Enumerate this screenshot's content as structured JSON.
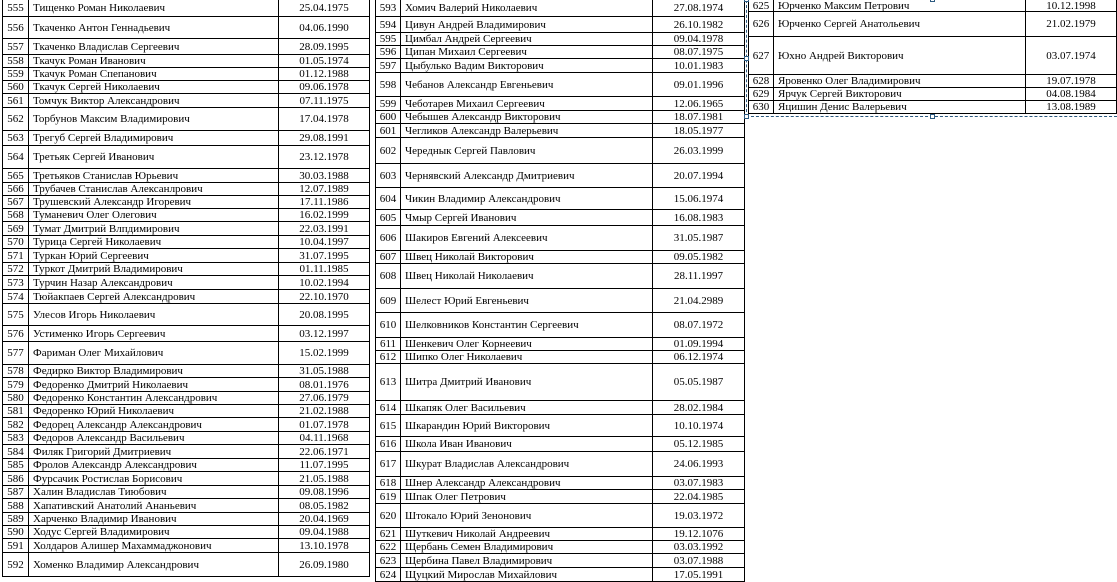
{
  "tables": [
    {
      "rows": [
        [
          "555",
          "Тищенко Роман Николаевич",
          "25.04.1975"
        ],
        [
          "556",
          "Ткаченко Антон Геннадьевич",
          "04.06.1990"
        ],
        [
          "557",
          "Ткаченко Владислав Сергеевич",
          "28.09.1995"
        ],
        [
          "558",
          "Ткачук Роман Иванович",
          "01.05.1974"
        ],
        [
          "559",
          "Ткачук Роман Спепанович",
          "01.12.1988"
        ],
        [
          "560",
          "Ткачук Сергей Николаевич",
          "09.06.1978"
        ],
        [
          "561",
          "Томчук Виктор Александрович",
          "07.11.1975"
        ],
        [
          "562",
          "Торбунов Максим Владимирович",
          "17.04.1978"
        ],
        [
          "563",
          "Трегуб Сергей Владимирович",
          "29.08.1991"
        ],
        [
          "564",
          "Третьяк Сергей Иванович",
          "23.12.1978"
        ],
        [
          "565",
          "Третьяков Станислав Юрьевич",
          "30.03.1988"
        ],
        [
          "566",
          "Трубачев Станислав Алексанлрович",
          "12.07.1989"
        ],
        [
          "567",
          "Трушевский Александр Игоревич",
          "17.11.1986"
        ],
        [
          "568",
          "Туманевич Олег Олегович",
          "16.02.1999"
        ],
        [
          "569",
          "Тумат Дмитрий Влпдимирович",
          "22.03.1991"
        ],
        [
          "570",
          "Турица Сергей Николаевич",
          "10.04.1997"
        ],
        [
          "571",
          "Туркан Юрий Сергеевич",
          "31.07.1995"
        ],
        [
          "572",
          "Туркот Дмитрий Владимирович",
          "01.11.1985"
        ],
        [
          "573",
          "Турчин Назар Александрович",
          "10.02.1994"
        ],
        [
          "574",
          "Тюйакпаев Сергей Александрович",
          "22.10.1970"
        ],
        [
          "575",
          "Улесов Игорь Николаевич",
          "20.08.1995"
        ],
        [
          "576",
          "Устименко Игорь Сергеевич",
          "03.12.1997"
        ],
        [
          "577",
          "Фариман Олег Михайлович",
          "15.02.1999"
        ],
        [
          "578",
          "Федирко Виктор Владимирович",
          "31.05.1988"
        ],
        [
          "579",
          "Федоренко Дмитрий Николаевич",
          "08.01.1976"
        ],
        [
          "580",
          "Федоренко Константин Александрович",
          "27.06.1979"
        ],
        [
          "581",
          "Федоренко Юрий Николаевич",
          "21.02.1988"
        ],
        [
          "582",
          "Федорец  Александр Александрович",
          "01.07.1978"
        ],
        [
          "583",
          "Федоров Александр Васильевич",
          "04.11.1968"
        ],
        [
          "584",
          "Филяк Григорий Дмитриевич",
          "22.06.1971"
        ],
        [
          "585",
          "Фролов Александр Александрович",
          "11.07.1995"
        ],
        [
          "586",
          "Фурсачик  Ростислав Борисович",
          "21.05.1988"
        ],
        [
          "587",
          "Халин Владислав Тиюбович",
          "09.08.1996"
        ],
        [
          "588",
          "Хапативский Анатолий Ананьевич",
          "08.05.1982"
        ],
        [
          "589",
          "Харченко Владимир Иванович",
          "20.04.1969"
        ],
        [
          "590",
          "Ходус Сергей  Владимирович",
          "09.04.1988"
        ],
        [
          "591",
          "Холдаров Алишер Махаммаджонович",
          "13.10.1978"
        ],
        [
          "592",
          "Хоменко Владимир Александрович",
          "26.09.1980"
        ]
      ]
    },
    {
      "rows": [
        [
          "593",
          "Хомич Валерий Николаевич",
          "27.08.1974"
        ],
        [
          "594",
          "Цивун Андрей Владимирович",
          "26.10.1982"
        ],
        [
          "595",
          "Цимбал Андрей Сергеевич",
          "09.04.1978"
        ],
        [
          "596",
          "Ципан Михаил Сергеевич",
          "08.07.1975"
        ],
        [
          "597",
          "Цыбулько  Вадим Викторович",
          "10.01.1983"
        ],
        [
          "598",
          "Чебанов Александр Евгеньевич",
          "09.01.1996"
        ],
        [
          "599",
          "Чеботарев  Михаил Сергеевич",
          "12.06.1965"
        ],
        [
          "600",
          "Чебышев Александр Викторович",
          "18.07.1981"
        ],
        [
          "601",
          "Чегликов Александр Валерьевич",
          "18.05.1977"
        ],
        [
          "602",
          "Череднык Сергей Павлович",
          "26.03.1999"
        ],
        [
          "603",
          "Чернявский Александр Дмитриевич",
          "20.07.1994"
        ],
        [
          "604",
          "Чикин Владимир Александрович",
          "15.06.1974"
        ],
        [
          "605",
          "Чмыр Сергей Иванович",
          "16.08.1983"
        ],
        [
          "606",
          "Шакиров Евгений Алексеевич",
          "31.05.1987"
        ],
        [
          "607",
          "Швец Николай Викторович",
          "09.05.1982"
        ],
        [
          "608",
          "Швец Николай Николаевич",
          "28.11.1997"
        ],
        [
          "609",
          "Шелест Юрий Евгеньевич",
          "21.04.2989"
        ],
        [
          "610",
          "Шелковников Константин Сергеевич",
          "08.07.1972"
        ],
        [
          "611",
          "Шенкевич Олег Корнеевич",
          "01.09.1994"
        ],
        [
          "612",
          "Шипко Олег Николаевич",
          "06.12.1974"
        ],
        [
          "613",
          "Шитра Дмитрий Иванович",
          "05.05.1987"
        ],
        [
          "614",
          "Шкапяк Олег Васильевич",
          "28.02.1984"
        ],
        [
          "615",
          "Шкарандин Юрий Викторович",
          "10.10.1974"
        ],
        [
          "616",
          "Школа Иван Иванович",
          "05.12.1985"
        ],
        [
          "617",
          "Шкурат Владислав Александрович",
          "24.06.1993"
        ],
        [
          "618",
          "Шнер Александр Александрович",
          "03.07.1983"
        ],
        [
          "619",
          "Шпак Олег Петрович",
          "22.04.1985"
        ],
        [
          "620",
          "Штокало Юрий Зенонович",
          "19.03.1972"
        ],
        [
          "621",
          "Шуткевич Николай Андреевич",
          "19.12.1076"
        ],
        [
          "622",
          "Щербань Семен Владимирович",
          "03.03.1992"
        ],
        [
          "623",
          "Щербина Павел Владимирович",
          "03.07.1988"
        ],
        [
          "624",
          "Щуцкий Мирослав Михайлович",
          "17.05.1991"
        ]
      ]
    },
    {
      "rows": [
        [
          "625",
          "Юрченко Максим Петрович",
          "10.12.1998"
        ],
        [
          "626",
          "Юрченко Сергей Анатольевич",
          "21.02.1979"
        ],
        [
          "627",
          "Юхно Андрей Викторович",
          "03.07.1974"
        ],
        [
          "628",
          "Яровенко Олег Владимирович",
          "19.07.1978"
        ],
        [
          "629",
          "Ярчук Сергей Викторович",
          "04.08.1984"
        ],
        [
          "630",
          "Яцишин Денис  Валерьевич",
          "13.08.1989"
        ]
      ]
    }
  ]
}
